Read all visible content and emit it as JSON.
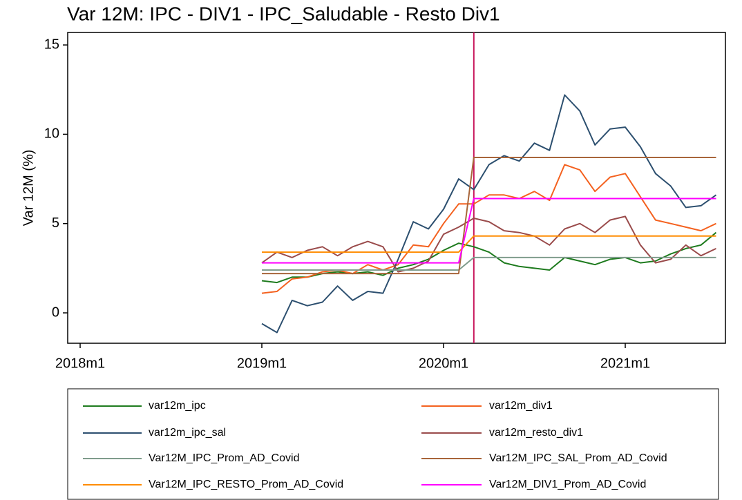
{
  "chart_data": {
    "type": "line",
    "title": "Var 12M: IPC - DIV1 - IPC_Saludable - Resto Div1",
    "y_label": "Var 12M (%)",
    "x": [
      "2019m1",
      "2019m2",
      "2019m3",
      "2019m4",
      "2019m5",
      "2019m6",
      "2019m7",
      "2019m8",
      "2019m9",
      "2019m10",
      "2019m11",
      "2019m12",
      "2020m1",
      "2020m2",
      "2020m3",
      "2020m4",
      "2020m5",
      "2020m6",
      "2020m7",
      "2020m8",
      "2020m9",
      "2020m10",
      "2020m11",
      "2020m12",
      "2021m1",
      "2021m2",
      "2021m3",
      "2021m4",
      "2021m5",
      "2021m6",
      "2021m7"
    ],
    "xlim": [
      "2018m1",
      "2021m7"
    ],
    "xticks": [
      "2018m1",
      "2019m1",
      "2020m1",
      "2021m1"
    ],
    "ylim": [
      -1.7,
      15.7
    ],
    "yticks": [
      0,
      5,
      10,
      15
    ],
    "vline": "2020m3",
    "vline_color": "#c8175c",
    "legend": "bottom",
    "series": [
      {
        "name": "var12m_ipc",
        "color": "#1e7b1e",
        "values": [
          1.8,
          1.7,
          2.0,
          2.0,
          2.2,
          2.3,
          2.2,
          2.3,
          2.1,
          2.5,
          2.7,
          3.0,
          3.5,
          3.9,
          3.7,
          3.4,
          2.8,
          2.6,
          2.5,
          2.4,
          3.1,
          2.9,
          2.7,
          3.0,
          3.1,
          2.8,
          2.9,
          3.3,
          3.6,
          3.8,
          4.5
        ]
      },
      {
        "name": "var12m_div1",
        "color": "#f4611f",
        "values": [
          1.1,
          1.2,
          1.9,
          2.0,
          2.3,
          2.4,
          2.2,
          2.7,
          2.4,
          2.7,
          3.8,
          3.7,
          5.0,
          6.1,
          6.1,
          6.6,
          6.6,
          6.4,
          6.8,
          6.3,
          8.3,
          8.0,
          6.8,
          7.6,
          7.8,
          6.5,
          5.2,
          5.0,
          4.8,
          4.6,
          5.0
        ]
      },
      {
        "name": "var12m_ipc_sal",
        "color": "#2c4f6f",
        "values": [
          -0.6,
          -1.1,
          0.7,
          0.4,
          0.6,
          1.5,
          0.7,
          1.2,
          1.1,
          3.0,
          5.1,
          4.7,
          5.8,
          7.5,
          6.9,
          8.3,
          8.8,
          8.5,
          9.5,
          9.1,
          12.2,
          11.3,
          9.4,
          10.3,
          10.4,
          9.3,
          7.8,
          7.1,
          5.9,
          6.0,
          6.6
        ]
      },
      {
        "name": "var12m_resto_div1",
        "color": "#9a4b4b",
        "values": [
          2.8,
          3.4,
          3.1,
          3.5,
          3.7,
          3.2,
          3.7,
          4.0,
          3.7,
          2.3,
          2.5,
          2.9,
          4.4,
          4.8,
          5.3,
          5.1,
          4.6,
          4.5,
          4.3,
          3.8,
          4.7,
          5.0,
          4.5,
          5.2,
          5.4,
          3.8,
          2.8,
          3.0,
          3.8,
          3.2,
          3.6
        ]
      },
      {
        "name": "Var12M_IPC_Prom_AD_Covid",
        "color": "#7f9c8c",
        "values": [
          2.4,
          2.4,
          2.4,
          2.4,
          2.4,
          2.4,
          2.4,
          2.4,
          2.4,
          2.4,
          2.4,
          2.4,
          2.4,
          2.4,
          3.1,
          3.1,
          3.1,
          3.1,
          3.1,
          3.1,
          3.1,
          3.1,
          3.1,
          3.1,
          3.1,
          3.1,
          3.1,
          3.1,
          3.1,
          3.1,
          3.1
        ]
      },
      {
        "name": "Var12M_IPC_SAL_Prom_AD_Covid",
        "color": "#a8653a",
        "values": [
          2.2,
          2.2,
          2.2,
          2.2,
          2.2,
          2.2,
          2.2,
          2.2,
          2.2,
          2.2,
          2.2,
          2.2,
          2.2,
          2.2,
          8.7,
          8.7,
          8.7,
          8.7,
          8.7,
          8.7,
          8.7,
          8.7,
          8.7,
          8.7,
          8.7,
          8.7,
          8.7,
          8.7,
          8.7,
          8.7,
          8.7
        ]
      },
      {
        "name": "Var12M_IPC_RESTO_Prom_AD_Covid",
        "color": "#ff8c00",
        "values": [
          3.4,
          3.4,
          3.4,
          3.4,
          3.4,
          3.4,
          3.4,
          3.4,
          3.4,
          3.4,
          3.4,
          3.4,
          3.4,
          3.4,
          4.3,
          4.3,
          4.3,
          4.3,
          4.3,
          4.3,
          4.3,
          4.3,
          4.3,
          4.3,
          4.3,
          4.3,
          4.3,
          4.3,
          4.3,
          4.3,
          4.3
        ]
      },
      {
        "name": "Var12M_DIV1_Prom_AD_Covid",
        "color": "#ff00ff",
        "values": [
          2.8,
          2.8,
          2.8,
          2.8,
          2.8,
          2.8,
          2.8,
          2.8,
          2.8,
          2.8,
          2.8,
          2.8,
          2.8,
          2.8,
          6.4,
          6.4,
          6.4,
          6.4,
          6.4,
          6.4,
          6.4,
          6.4,
          6.4,
          6.4,
          6.4,
          6.4,
          6.4,
          6.4,
          6.4,
          6.4,
          6.4
        ]
      }
    ]
  }
}
